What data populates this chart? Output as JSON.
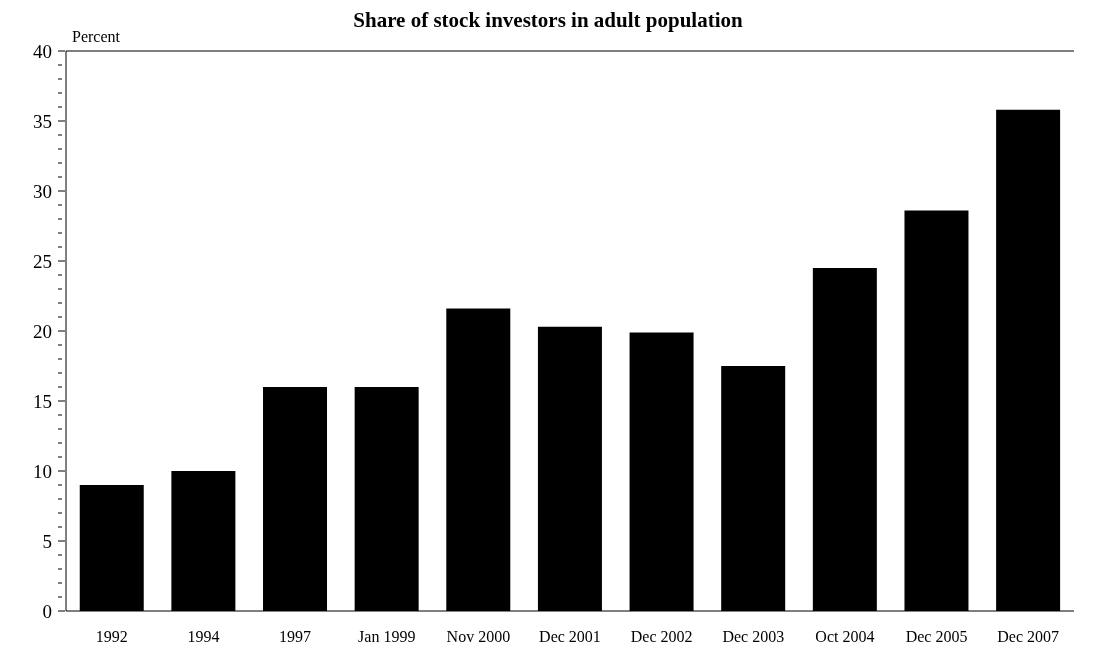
{
  "chart_data": {
    "type": "bar",
    "title": "Share of stock investors in adult population",
    "ylabel": "Percent",
    "categories": [
      "1992",
      "1994",
      "1997",
      "Jan 1999",
      "Nov 2000",
      "Dec 2001",
      "Dec 2002",
      "Dec 2003",
      "Oct 2004",
      "Dec 2005",
      "Dec 2007"
    ],
    "values": [
      9,
      10,
      16,
      16,
      21.6,
      20.3,
      19.9,
      17.5,
      24.5,
      28.6,
      35.8
    ],
    "color": "#000000",
    "ylim": [
      0,
      40
    ],
    "yticks": [
      0,
      {
        "value": 1,
        "label": null
      },
      {
        "value": 2,
        "label": null
      },
      {
        "value": 3,
        "label": null
      },
      {
        "value": 4,
        "label": null
      },
      5,
      {
        "value": 6,
        "label": null
      },
      {
        "value": 7,
        "label": null
      },
      {
        "value": 8,
        "label": null
      },
      {
        "value": 9,
        "label": null
      },
      10,
      {
        "value": 11,
        "label": null
      },
      {
        "value": 12,
        "label": null
      },
      {
        "value": 13,
        "label": null
      },
      {
        "value": 14,
        "label": null
      },
      15,
      {
        "value": 16,
        "label": null
      },
      {
        "value": 17,
        "label": null
      },
      {
        "value": 18,
        "label": null
      },
      {
        "value": 19,
        "label": null
      },
      20,
      {
        "value": 21,
        "label": null
      },
      {
        "value": 22,
        "label": null
      },
      {
        "value": 23,
        "label": null
      },
      {
        "value": 24,
        "label": null
      },
      25,
      {
        "value": 26,
        "label": null
      },
      {
        "value": 27,
        "label": null
      },
      {
        "value": 28,
        "label": null
      },
      {
        "value": 29,
        "label": null
      },
      30,
      {
        "value": 31,
        "label": null
      },
      {
        "value": 32,
        "label": null
      },
      {
        "value": 33,
        "label": null
      },
      {
        "value": 34,
        "label": null
      },
      35,
      {
        "value": 36,
        "label": null
      },
      {
        "value": 37,
        "label": null
      },
      {
        "value": 38,
        "label": null
      },
      {
        "value": 39,
        "label": null
      },
      40
    ],
    "grid": false
  }
}
